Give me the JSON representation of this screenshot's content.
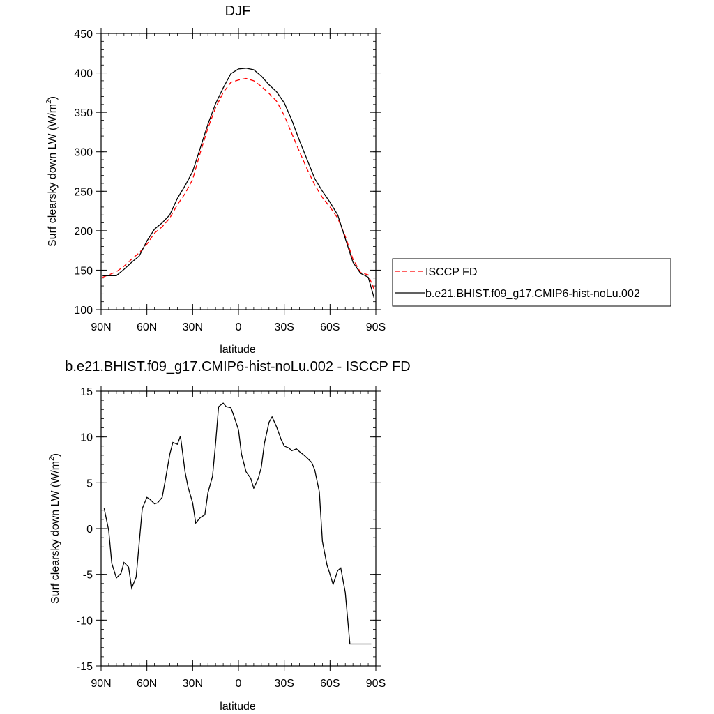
{
  "chart_data": [
    {
      "type": "line",
      "title": "DJF",
      "xlabel": "latitude",
      "ylabel": "Surf clearsky down LW (W/m",
      "ylabel_sup": "2",
      "ylabel_close": ")",
      "xlim": [
        90,
        -90
      ],
      "ylim": [
        100,
        450
      ],
      "xticks": [
        90,
        60,
        30,
        0,
        -30,
        -60,
        -90
      ],
      "xtick_labels": [
        "90N",
        "60N",
        "30N",
        "0",
        "30S",
        "60S",
        "90S"
      ],
      "yticks": [
        100,
        150,
        200,
        250,
        300,
        350,
        400,
        450
      ],
      "ytick_labels": [
        "100",
        "150",
        "200",
        "250",
        "300",
        "350",
        "400",
        "450"
      ],
      "legend": "right",
      "series": [
        {
          "name": "ISCCP FD",
          "color": "#ff0000",
          "dash": "dashed",
          "x": [
            89,
            85,
            80,
            75,
            70,
            65,
            60,
            55,
            50,
            45,
            40,
            35,
            30,
            25,
            20,
            15,
            10,
            5,
            0,
            -5,
            -10,
            -15,
            -20,
            -25,
            -30,
            -35,
            -40,
            -45,
            -50,
            -55,
            -60,
            -65,
            -70,
            -75,
            -80,
            -85,
            -89
          ],
          "y": [
            141,
            144,
            148,
            155,
            164,
            172,
            183,
            197,
            205,
            216,
            233,
            247,
            265,
            299,
            330,
            356,
            375,
            388,
            391,
            393,
            390,
            383,
            374,
            364,
            346,
            323,
            300,
            278,
            258,
            242,
            230,
            216,
            193,
            164,
            147,
            144,
            125
          ]
        },
        {
          "name": "b.e21.BHIST.f09_g17.CMIP6-hist-noLu.002",
          "color": "#000000",
          "dash": "solid",
          "x": [
            89,
            85,
            80,
            75,
            70,
            65,
            60,
            55,
            50,
            45,
            40,
            35,
            30,
            25,
            20,
            15,
            10,
            5,
            0,
            -5,
            -10,
            -15,
            -20,
            -25,
            -30,
            -35,
            -40,
            -45,
            -50,
            -55,
            -60,
            -65,
            -70,
            -75,
            -80,
            -85,
            -89
          ],
          "y": [
            143,
            143,
            143,
            151,
            160,
            168,
            187,
            202,
            210,
            220,
            241,
            257,
            275,
            305,
            335,
            361,
            381,
            399,
            405,
            406,
            404,
            396,
            385,
            376,
            362,
            340,
            314,
            290,
            266,
            250,
            236,
            220,
            190,
            160,
            146,
            141,
            114
          ]
        }
      ]
    },
    {
      "type": "line",
      "title": "b.e21.BHIST.f09_g17.CMIP6-hist-noLu.002 - ISCCP FD",
      "xlabel": "latitude",
      "ylabel": "Surf clearsky down LW (W/m",
      "ylabel_sup": "2",
      "ylabel_close": ")",
      "xlim": [
        90,
        -90
      ],
      "ylim": [
        -15,
        15
      ],
      "xticks": [
        90,
        60,
        30,
        0,
        -30,
        -60,
        -90
      ],
      "xtick_labels": [
        "90N",
        "60N",
        "30N",
        "0",
        "30S",
        "60S",
        "90S"
      ],
      "yticks": [
        -15,
        -10,
        -5,
        0,
        5,
        10,
        15
      ],
      "ytick_labels": [
        "-15",
        "-10",
        "-5",
        "0",
        "5",
        "10",
        "15"
      ],
      "series": [
        {
          "color": "#000000",
          "dash": "solid",
          "x": [
            88,
            85,
            83,
            80,
            77,
            75,
            72,
            70,
            67,
            65,
            63,
            60,
            58,
            55,
            53,
            50,
            48,
            45,
            43,
            40,
            38,
            35,
            33,
            30,
            28,
            25,
            22,
            20,
            17,
            15,
            13,
            10,
            8,
            5,
            3,
            0,
            -2,
            -5,
            -8,
            -10,
            -13,
            -15,
            -17,
            -20,
            -22,
            -25,
            -28,
            -30,
            -33,
            -35,
            -38,
            -40,
            -43,
            -45,
            -48,
            -50,
            -53,
            -55,
            -58,
            -60,
            -62,
            -65,
            -67,
            -70,
            -73,
            -75,
            -77,
            -80,
            -82,
            -85,
            -87
          ],
          "y": [
            2.2,
            -0.2,
            -3.8,
            -5.4,
            -4.9,
            -3.7,
            -4.2,
            -6.5,
            -5.3,
            -1.5,
            2.2,
            3.4,
            3.2,
            2.7,
            2.8,
            3.4,
            5.2,
            8.1,
            9.4,
            9.2,
            10.1,
            6.2,
            4.5,
            2.8,
            0.6,
            1.2,
            1.5,
            3.9,
            5.7,
            9.3,
            13.3,
            13.7,
            13.3,
            13.2,
            12.3,
            10.8,
            8.1,
            6.2,
            5.5,
            4.4,
            5.5,
            6.7,
            9.3,
            11.6,
            12.2,
            11.1,
            9.7,
            9.0,
            8.8,
            8.5,
            8.7,
            8.4,
            8.0,
            7.7,
            7.2,
            6.4,
            4.0,
            -1.4,
            -4.0,
            -5.0,
            -6.1,
            -4.6,
            -4.3,
            -7.0,
            -12.6,
            -12.6,
            -12.6,
            -12.6,
            -12.6,
            -12.6,
            -12.6
          ]
        }
      ]
    }
  ]
}
